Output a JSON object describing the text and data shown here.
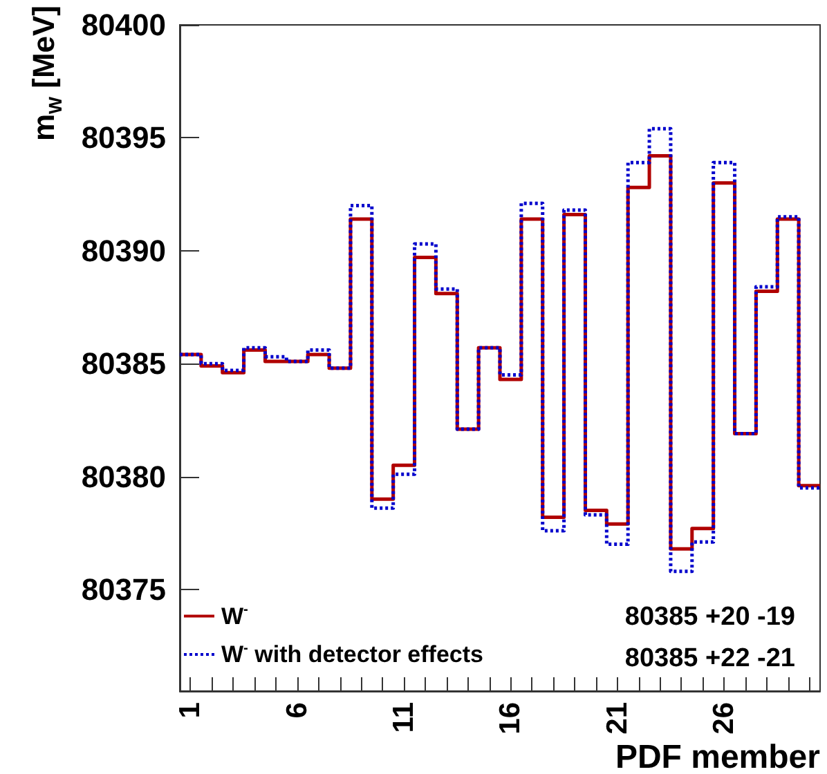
{
  "chart_data": {
    "type": "histogram",
    "xlabel": "PDF member",
    "ylabel": "m$_{W}$ [MeV]",
    "bins": [
      0.5,
      1.5,
      2.5,
      3.5,
      4.5,
      5.5,
      6.5,
      7.5,
      8.5,
      9.5,
      10.5,
      11.5,
      12.5,
      13.5,
      14.5,
      15.5,
      16.5,
      17.5,
      18.5,
      19.5,
      20.5,
      21.5,
      22.5,
      23.5,
      24.5,
      25.5,
      26.5,
      27.5,
      28.5,
      29.5,
      30.5
    ],
    "series": [
      {
        "name": "W$^{-}$",
        "color": "#b00000",
        "line_style": "solid",
        "values": [
          80385.4,
          80384.9,
          80384.6,
          80385.6,
          80385.1,
          80385.1,
          80385.4,
          80384.8,
          80391.4,
          80379.0,
          80380.5,
          80389.7,
          80388.1,
          80382.1,
          80385.7,
          80384.3,
          80391.4,
          80378.2,
          80391.6,
          80378.5,
          80377.9,
          80392.8,
          80394.2,
          80376.8,
          80377.7,
          80393.0,
          80381.9,
          80388.2,
          80391.4,
          80379.6
        ]
      },
      {
        "name": "W$^{-}$ with detector effects",
        "color": "#0000cc",
        "line_style": "dotted",
        "values": [
          80385.4,
          80385.0,
          80384.7,
          80385.7,
          80385.3,
          80385.1,
          80385.6,
          80384.8,
          80392.0,
          80378.6,
          80380.1,
          80390.3,
          80388.3,
          80382.1,
          80385.7,
          80384.5,
          80392.1,
          80377.6,
          80391.8,
          80378.3,
          80377.0,
          80393.9,
          80395.4,
          80375.8,
          80377.1,
          80393.9,
          80381.9,
          80388.4,
          80391.5,
          80379.5
        ]
      }
    ],
    "xlim": [
      0.5,
      30.5
    ],
    "xticks": [
      1,
      {
        "value": 2,
        "label": null
      },
      {
        "value": 3,
        "label": null
      },
      {
        "value": 4,
        "label": null
      },
      {
        "value": 5,
        "label": null
      },
      6,
      {
        "value": 7,
        "label": null
      },
      {
        "value": 8,
        "label": null
      },
      {
        "value": 9,
        "label": null
      },
      {
        "value": 10,
        "label": null
      },
      11,
      {
        "value": 12,
        "label": null
      },
      {
        "value": 13,
        "label": null
      },
      {
        "value": 14,
        "label": null
      },
      {
        "value": 15,
        "label": null
      },
      16,
      {
        "value": 17,
        "label": null
      },
      {
        "value": 18,
        "label": null
      },
      {
        "value": 19,
        "label": null
      },
      {
        "value": 20,
        "label": null
      },
      21,
      {
        "value": 22,
        "label": null
      },
      {
        "value": 23,
        "label": null
      },
      {
        "value": 24,
        "label": null
      },
      {
        "value": 25,
        "label": null
      },
      26,
      {
        "value": 27,
        "label": null
      },
      {
        "value": 28,
        "label": null
      },
      {
        "value": 29,
        "label": null
      },
      {
        "value": 30,
        "label": null
      }
    ],
    "ylim": [
      80370.5,
      80400
    ],
    "yticks": [
      80375,
      80380,
      80385,
      80390,
      80395,
      80400
    ],
    "grid": false,
    "legend": "bottom left",
    "annotations": [
      "80385 +20 -19",
      "80385 +22 -21"
    ]
  }
}
